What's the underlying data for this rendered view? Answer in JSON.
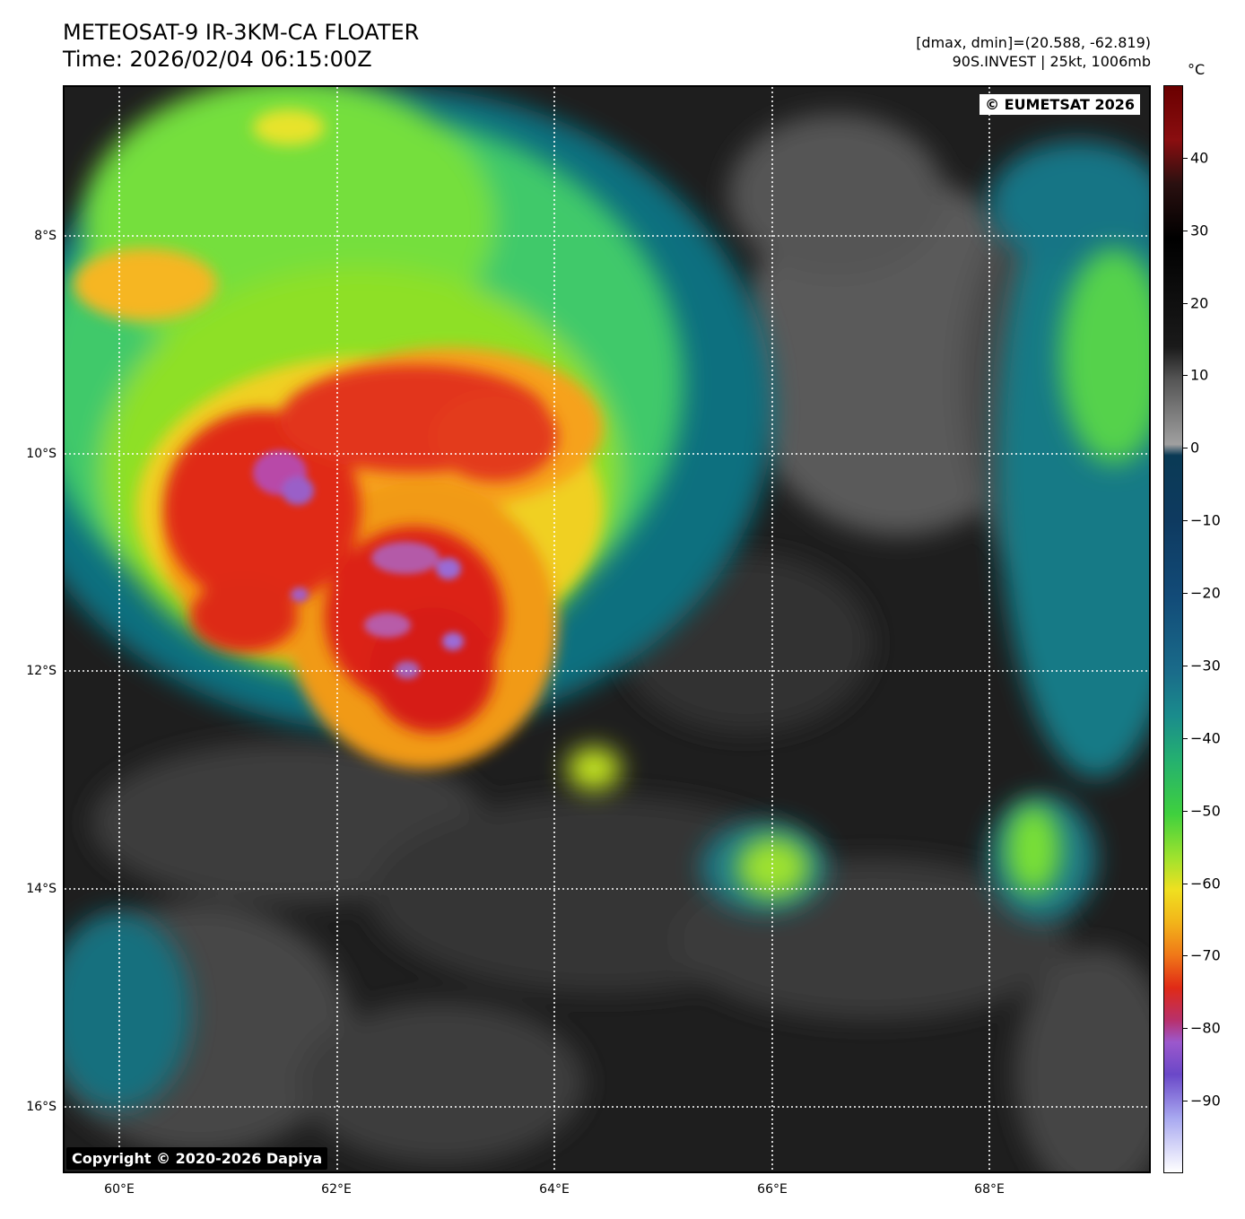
{
  "header": {
    "title": "METEOSAT-9 IR-3KM-CA FLOATER",
    "time": "Time: 2026/02/04 06:15:00Z",
    "dmax_dmin": "[dmax, dmin]=(20.588, -62.819)",
    "storm": "90S.INVEST | 25kt, 1006mb"
  },
  "map": {
    "credit_top": "© EUMETSAT 2026",
    "credit_bottom": "Copyright © 2020-2026 Dapiya",
    "lat_labels": [
      "8°S",
      "10°S",
      "12°S",
      "14°S",
      "16°S"
    ],
    "lon_labels": [
      "60°E",
      "62°E",
      "64°E",
      "66°E",
      "68°E"
    ]
  },
  "colorbar": {
    "unit": "°C",
    "ticks": [
      "40",
      "30",
      "20",
      "10",
      "0",
      "−10",
      "−20",
      "−30",
      "−40",
      "−50",
      "−60",
      "−70",
      "−80",
      "−90"
    ],
    "tick_values": [
      40,
      30,
      20,
      10,
      0,
      -10,
      -20,
      -30,
      -40,
      -50,
      -60,
      -70,
      -80,
      -90
    ],
    "range": [
      -100,
      50
    ]
  }
}
